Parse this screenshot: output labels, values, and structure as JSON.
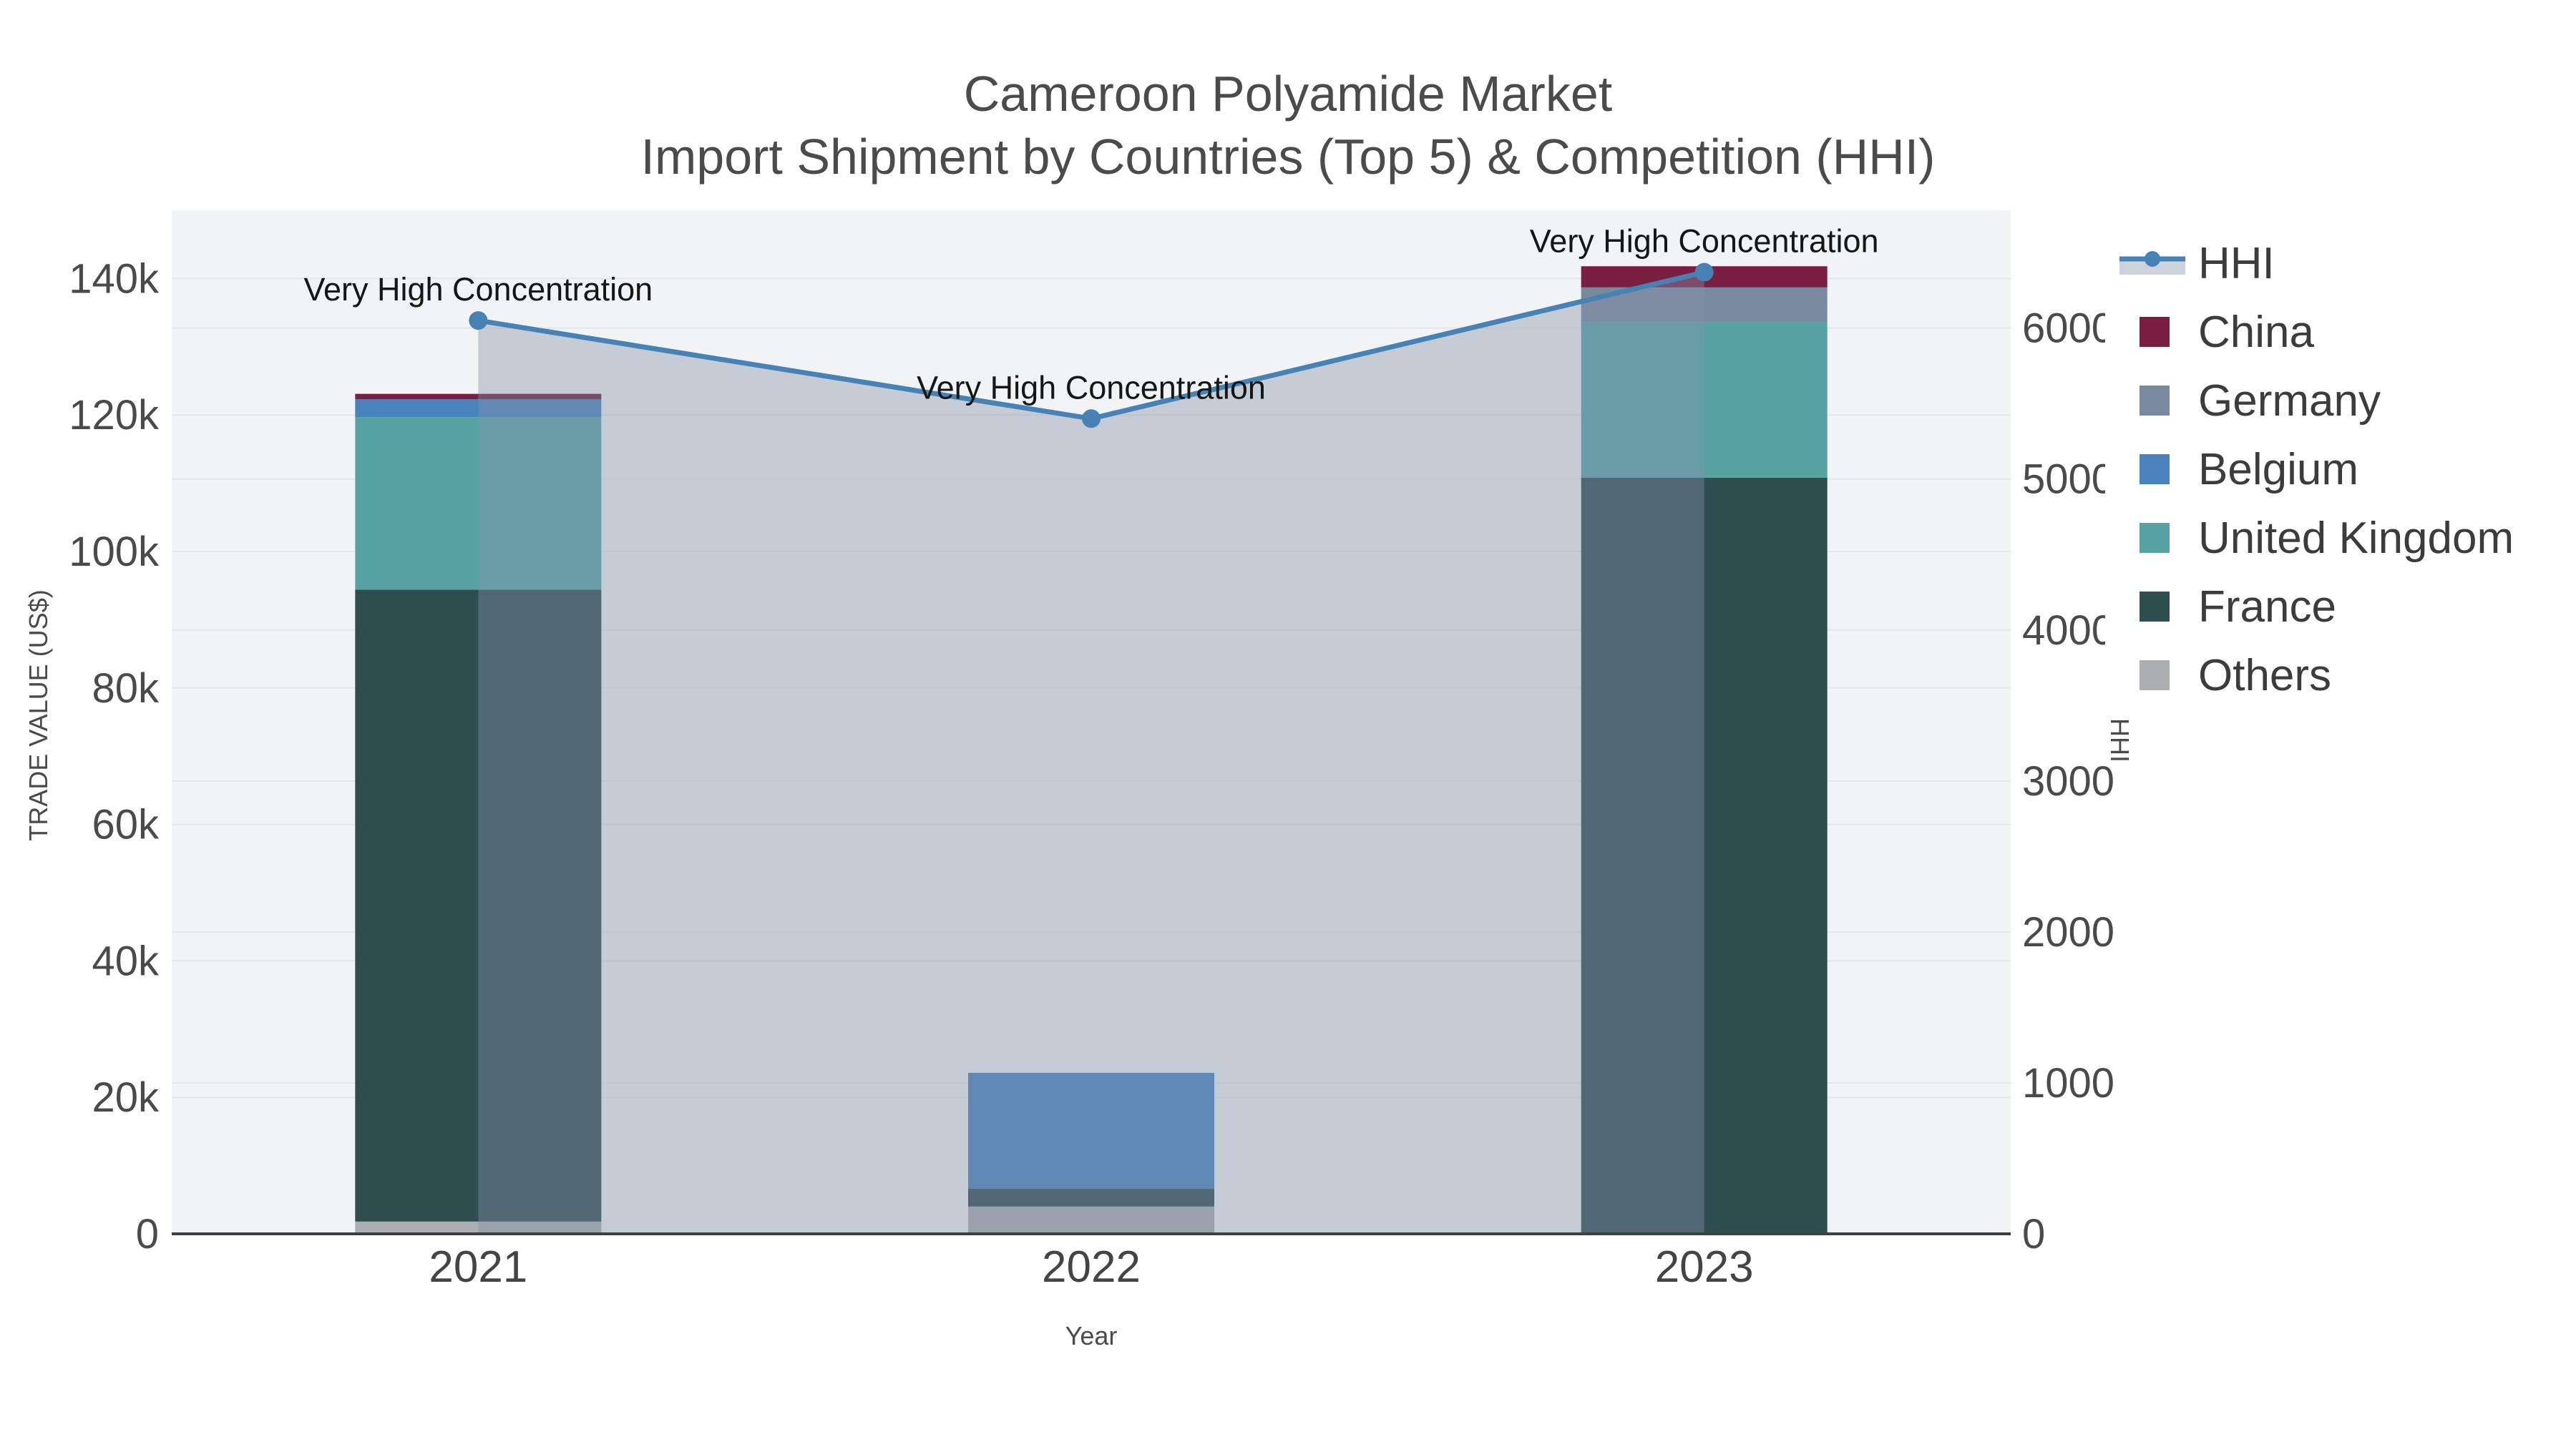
{
  "title": {
    "line1": "Cameroon Polyamide Market",
    "line2": "Import Shipment by Countries (Top 5) & Competition (HHI)"
  },
  "axes": {
    "x_title": "Year",
    "y_left_title": "TRADE VALUE (US$)",
    "y_right_title": "HHI",
    "x_ticks": [
      "2021",
      "2022",
      "2023"
    ],
    "y_left_ticks": [
      {
        "value": 0,
        "label": "0"
      },
      {
        "value": 20000,
        "label": "20k"
      },
      {
        "value": 40000,
        "label": "40k"
      },
      {
        "value": 60000,
        "label": "60k"
      },
      {
        "value": 80000,
        "label": "80k"
      },
      {
        "value": 100000,
        "label": "100k"
      },
      {
        "value": 120000,
        "label": "120k"
      },
      {
        "value": 140000,
        "label": "140k"
      }
    ],
    "y_right_ticks": [
      {
        "value": 0,
        "label": "0"
      },
      {
        "value": 1000,
        "label": "1000"
      },
      {
        "value": 2000,
        "label": "2000"
      },
      {
        "value": 3000,
        "label": "3000"
      },
      {
        "value": 4000,
        "label": "4000"
      },
      {
        "value": 5000,
        "label": "5000"
      },
      {
        "value": 6000,
        "label": "6000"
      }
    ],
    "y_left_range": [
      0,
      150000
    ],
    "y_right_range": [
      0,
      6780
    ]
  },
  "legend": {
    "items": [
      "HHI",
      "China",
      "Germany",
      "Belgium",
      "United Kingdom",
      "France",
      "Others"
    ]
  },
  "chart_data": {
    "type": "bar+line",
    "title": "Cameroon Polyamide Market",
    "subtitle": "Import Shipment by Countries (Top 5) & Competition (HHI)",
    "categories": [
      "2021",
      "2022",
      "2023"
    ],
    "xlabel": "Year",
    "ylabel_left": "TRADE VALUE (US$)",
    "ylabel_right": "HHI",
    "stack_order_bottom_to_top": [
      "Others",
      "France",
      "United Kingdom",
      "Belgium",
      "Germany",
      "China"
    ],
    "series": [
      {
        "name": "China",
        "color": "#7b1f41",
        "values": [
          800,
          0,
          3100
        ]
      },
      {
        "name": "Germany",
        "color": "#7a8a9e",
        "values": [
          0,
          0,
          5100
        ]
      },
      {
        "name": "Belgium",
        "color": "#4883bd",
        "values": [
          2600,
          17000,
          0
        ]
      },
      {
        "name": "United Kingdom",
        "color": "#57a3a3",
        "values": [
          25300,
          0,
          22800
        ]
      },
      {
        "name": "France",
        "color": "#2e4d4f",
        "values": [
          92600,
          2600,
          110800
        ]
      },
      {
        "name": "Others",
        "color": "#acaeb0",
        "values": [
          1800,
          4000,
          0
        ]
      }
    ],
    "bar_totals": [
      123100,
      23600,
      141800
    ],
    "line_series": {
      "name": "HHI",
      "color": "#4682b4",
      "fill_color": "rgba(133,146,170,0.40)",
      "values": [
        6050,
        5400,
        6370
      ]
    },
    "annotations": [
      {
        "text": "Very High Concentration",
        "category": "2021"
      },
      {
        "text": "Very High Concentration",
        "category": "2022"
      },
      {
        "text": "Very High Concentration",
        "category": "2023"
      }
    ],
    "grid": true,
    "legend_position": "right",
    "plot_bg_color": "#f2f3f4",
    "grid_color": "#e4e6e9",
    "axis_line_color": "#3f3f3f"
  }
}
